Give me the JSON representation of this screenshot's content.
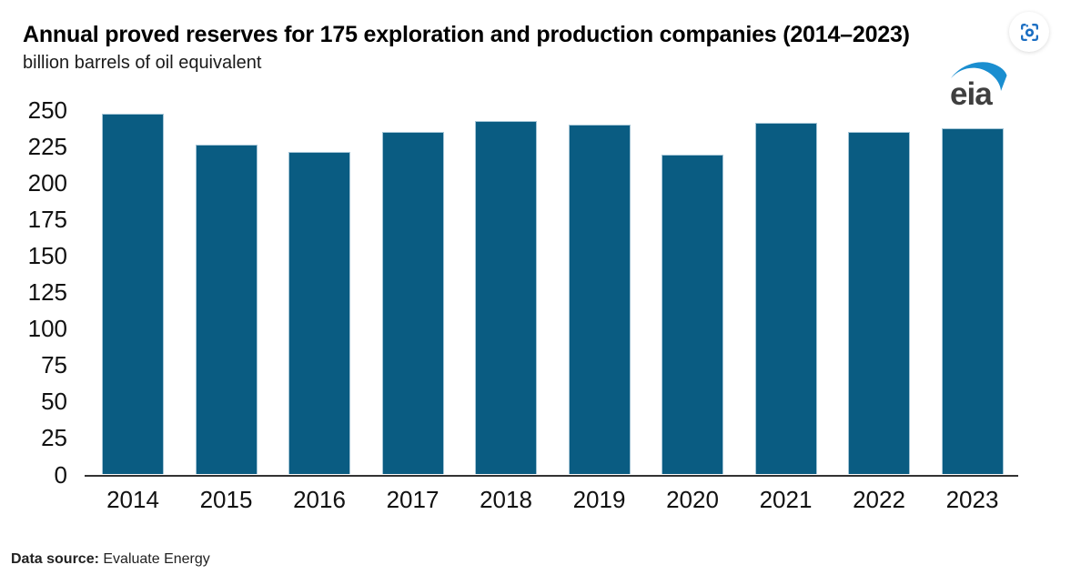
{
  "header": {
    "title": "Annual proved reserves for 175 exploration and production companies (2014–2023)",
    "subtitle": "billion barrels of oil equivalent"
  },
  "icons": {
    "capture_button": "screenshot-capture-icon",
    "logo": "eia-logo"
  },
  "logo": {
    "text": "eia",
    "text_color": "#3f3f3f",
    "swoosh_color": "#1a8ed0"
  },
  "chart_data": {
    "type": "bar",
    "title": "Annual proved reserves for 175 exploration and production companies (2014–2023)",
    "subtitle": "billion barrels of oil equivalent",
    "categories": [
      "2014",
      "2015",
      "2016",
      "2017",
      "2018",
      "2019",
      "2020",
      "2021",
      "2022",
      "2023"
    ],
    "values": [
      247,
      226,
      221,
      235,
      242,
      240,
      219,
      241,
      235,
      237
    ],
    "ylim": [
      0,
      250
    ],
    "ytick_step": 25,
    "yticks": [
      0,
      25,
      50,
      75,
      100,
      125,
      150,
      175,
      200,
      225,
      250
    ],
    "grid": false,
    "legend": "none",
    "bar_color": "#0a5c82",
    "bar_border_color": "#a4c5d6",
    "axis_line_color": "#333333",
    "accent_blue": "#1b6ec2"
  },
  "footer": {
    "label": "Data source:",
    "value": "Evaluate Energy"
  }
}
